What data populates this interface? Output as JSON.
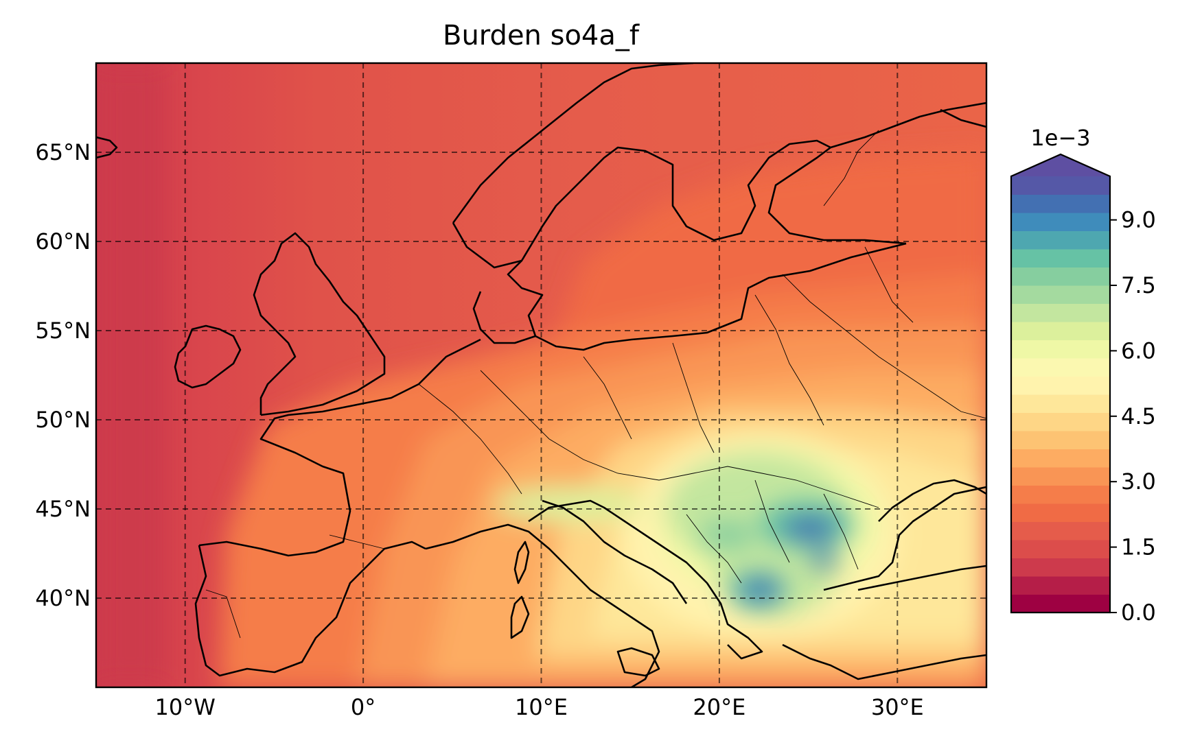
{
  "title": "Burden so4a_f",
  "map": {
    "lon_range": [
      -15,
      35
    ],
    "lat_range": [
      35,
      70
    ],
    "lon_ticks": [
      {
        "value": -10,
        "label": "10°W"
      },
      {
        "value": 0,
        "label": "0°"
      },
      {
        "value": 10,
        "label": "10°E"
      },
      {
        "value": 20,
        "label": "20°E"
      },
      {
        "value": 30,
        "label": "30°E"
      }
    ],
    "lat_ticks": [
      {
        "value": 40,
        "label": "40°N"
      },
      {
        "value": 45,
        "label": "45°N"
      },
      {
        "value": 50,
        "label": "50°N"
      },
      {
        "value": 55,
        "label": "55°N"
      },
      {
        "value": 60,
        "label": "60°N"
      },
      {
        "value": 65,
        "label": "65°N"
      }
    ],
    "gridlines": "dashed",
    "field": "Burden so4a_f"
  },
  "colorbar": {
    "exponent_label": "1e−3",
    "range": [
      0.0,
      10.0
    ],
    "extend": "max",
    "tick_labels": [
      "0.0",
      "1.5",
      "3.0",
      "4.5",
      "6.0",
      "7.5",
      "9.0"
    ],
    "tick_values": [
      0.0,
      1.5,
      3.0,
      4.5,
      6.0,
      7.5,
      9.0
    ],
    "colors": [
      "#9e0142",
      "#b51e48",
      "#cd3a4c",
      "#dc4d4b",
      "#e55c4b",
      "#f06b45",
      "#f57d4a",
      "#f99555",
      "#fdac62",
      "#fdc373",
      "#fed686",
      "#fee79a",
      "#fff3ad",
      "#fbf8b0",
      "#eff8a6",
      "#dcf09c",
      "#c3e69f",
      "#a4da9f",
      "#86ce9f",
      "#66c2a5",
      "#4ea7b0",
      "#3f8cbb",
      "#4370b2",
      "#5558a7",
      "#5e4fa2"
    ]
  }
}
